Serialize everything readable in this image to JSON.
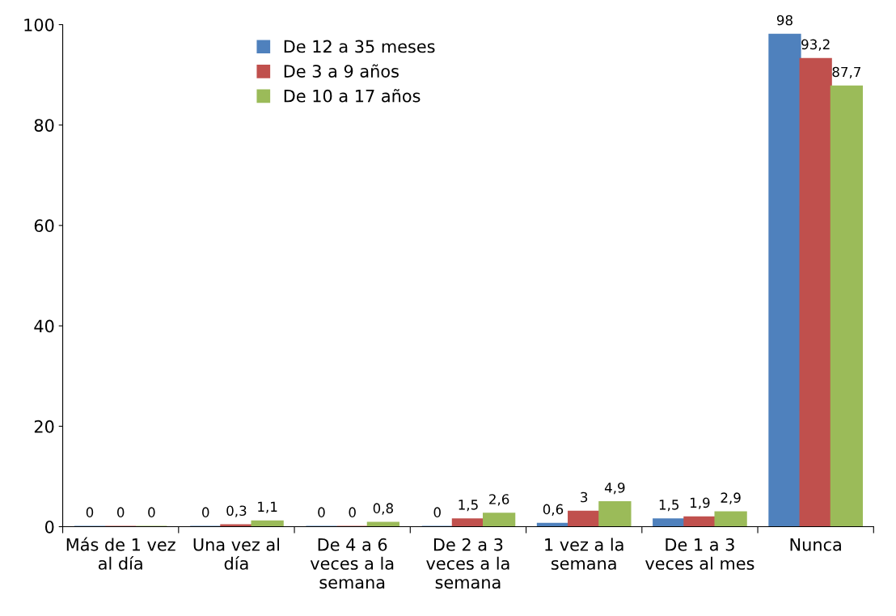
{
  "chart_data": {
    "type": "bar",
    "categories": [
      "Más de 1 vez\nal día",
      "Una vez al\ndía",
      "De 4 a 6\nveces a la\nsemana",
      "De 2 a 3\nveces a la\nsemana",
      "1 vez a la\nsemana",
      "De 1 a 3\nveces al mes",
      "Nunca"
    ],
    "series": [
      {
        "name": "De 12 a 35 meses",
        "color": "#4f81bd",
        "values": [
          0,
          0,
          0,
          0,
          0.6,
          1.5,
          98
        ],
        "value_labels": [
          "0",
          "0",
          "0",
          "0",
          "0,6",
          "1,5",
          "98"
        ]
      },
      {
        "name": "De 3 a 9 años",
        "color": "#c0504d",
        "values": [
          0,
          0.3,
          0,
          1.5,
          3,
          1.9,
          93.2
        ],
        "value_labels": [
          "0",
          "0,3",
          "0",
          "1,5",
          "3",
          "1,9",
          "93,2"
        ]
      },
      {
        "name": "De 10 a 17 años",
        "color": "#9bbb59",
        "values": [
          0,
          1.1,
          0.8,
          2.6,
          4.9,
          2.9,
          87.7
        ],
        "value_labels": [
          "0",
          "1,1",
          "0,8",
          "2,6",
          "4,9",
          "2,9",
          "87,7"
        ]
      }
    ],
    "ylim": [
      0,
      100
    ],
    "yticks": [
      0,
      20,
      40,
      60,
      80,
      100
    ],
    "grid": false,
    "legend": "top"
  }
}
